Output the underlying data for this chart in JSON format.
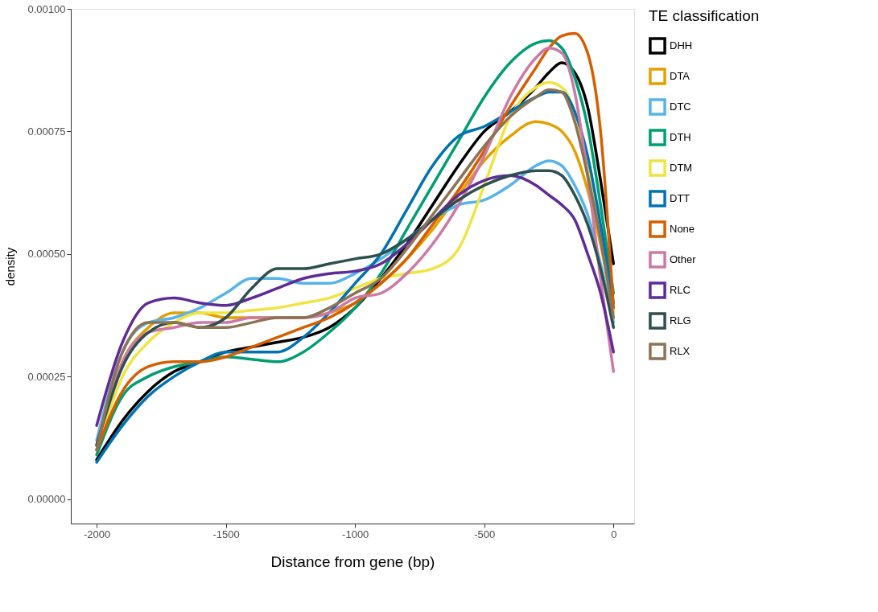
{
  "chart_data": {
    "type": "line",
    "xlabel": "Distance from gene (bp)",
    "ylabel": "density",
    "legend_title": "TE classification",
    "x": [
      -2000,
      -1900,
      -1800,
      -1700,
      -1600,
      -1500,
      -1400,
      -1300,
      -1200,
      -1100,
      -1000,
      -900,
      -800,
      -700,
      -600,
      -500,
      -400,
      -300,
      -250,
      -200,
      -150,
      -100,
      -50,
      0
    ],
    "series": [
      {
        "name": "DHH",
        "color": "#000000",
        "values": [
          8e-05,
          0.00016,
          0.00022,
          0.00026,
          0.00028,
          0.0003,
          0.00031,
          0.00032,
          0.00033,
          0.00035,
          0.00039,
          0.00045,
          0.00052,
          0.0006,
          0.00068,
          0.00075,
          0.00079,
          0.00084,
          0.00087,
          0.00089,
          0.00087,
          0.0008,
          0.00065,
          0.00048
        ]
      },
      {
        "name": "DTA",
        "color": "#e69f00",
        "values": [
          0.00011,
          0.00028,
          0.00035,
          0.00038,
          0.00038,
          0.00037,
          0.00037,
          0.00037,
          0.00037,
          0.00038,
          0.0004,
          0.00044,
          0.00049,
          0.00055,
          0.00062,
          0.00069,
          0.00074,
          0.00077,
          0.000765,
          0.00075,
          0.00071,
          0.00063,
          0.00052,
          0.00038
        ]
      },
      {
        "name": "DTC",
        "color": "#56b4e9",
        "values": [
          0.00012,
          0.0003,
          0.00036,
          0.00037,
          0.00039,
          0.00042,
          0.00045,
          0.00045,
          0.00044,
          0.00044,
          0.00046,
          0.00049,
          0.00053,
          0.00057,
          0.0006,
          0.00061,
          0.00064,
          0.00068,
          0.00069,
          0.00068,
          0.00064,
          0.00058,
          0.00048,
          0.00036
        ]
      },
      {
        "name": "DTH",
        "color": "#009e73",
        "values": [
          9e-05,
          0.00021,
          0.00025,
          0.00027,
          0.00028,
          0.00029,
          0.000285,
          0.00028,
          0.0003,
          0.00034,
          0.00039,
          0.00046,
          0.00055,
          0.00064,
          0.00073,
          0.00082,
          0.00089,
          0.00093,
          0.000935,
          0.00092,
          0.00086,
          0.00076,
          0.0006,
          0.00042
        ]
      },
      {
        "name": "DTM",
        "color": "#f0e442",
        "values": [
          0.0001,
          0.00025,
          0.00032,
          0.00036,
          0.00038,
          0.00038,
          0.000385,
          0.00039,
          0.0004,
          0.00041,
          0.00043,
          0.00045,
          0.00046,
          0.00047,
          0.00051,
          0.00064,
          0.00078,
          0.00084,
          0.00085,
          0.00084,
          0.00079,
          0.00068,
          0.00054,
          0.00038
        ]
      },
      {
        "name": "DTT",
        "color": "#0072b2",
        "values": [
          7.5e-05,
          0.00015,
          0.00021,
          0.00025,
          0.00028,
          0.0003,
          0.0003,
          0.0003,
          0.00033,
          0.00038,
          0.00044,
          0.0005,
          0.00059,
          0.00068,
          0.00074,
          0.00076,
          0.00079,
          0.00082,
          0.00083,
          0.00083,
          0.00079,
          0.0007,
          0.00056,
          0.0004
        ]
      },
      {
        "name": "None",
        "color": "#d55e00",
        "values": [
          0.0001,
          0.00022,
          0.00027,
          0.00028,
          0.00028,
          0.00029,
          0.00031,
          0.00033,
          0.00035,
          0.00037,
          0.0004,
          0.00044,
          0.00049,
          0.00056,
          0.00063,
          0.00071,
          0.0008,
          0.00088,
          0.00092,
          0.000945,
          0.00095,
          0.00091,
          0.00075,
          0.00039
        ]
      },
      {
        "name": "Other",
        "color": "#cc79a7",
        "values": [
          0.00011,
          0.00028,
          0.00034,
          0.00035,
          0.00036,
          0.00036,
          0.00037,
          0.00037,
          0.00037,
          0.00038,
          0.00041,
          0.00042,
          0.00046,
          0.00052,
          0.0006,
          0.0007,
          0.00082,
          0.0009,
          0.00092,
          0.00091,
          0.00083,
          0.00066,
          0.00045,
          0.00026
        ]
      },
      {
        "name": "RLC",
        "color": "#5e2b97",
        "values": [
          0.00015,
          0.00032,
          0.0004,
          0.00041,
          0.0004,
          0.000395,
          0.00041,
          0.00043,
          0.00045,
          0.00046,
          0.000465,
          0.00048,
          0.00052,
          0.00057,
          0.00062,
          0.00065,
          0.00066,
          0.00064,
          0.00062,
          0.0006,
          0.00057,
          0.0005,
          0.00042,
          0.0003
        ]
      },
      {
        "name": "RLG",
        "color": "#2f4f4f",
        "values": [
          0.00011,
          0.00027,
          0.00034,
          0.00036,
          0.00035,
          0.00037,
          0.00043,
          0.00047,
          0.00047,
          0.00048,
          0.00049,
          0.0005,
          0.00053,
          0.00057,
          0.00061,
          0.00064,
          0.00066,
          0.00067,
          0.00067,
          0.00066,
          0.00062,
          0.00056,
          0.00047,
          0.00035
        ]
      },
      {
        "name": "RLX",
        "color": "#8c7355",
        "values": [
          0.0001,
          0.0003,
          0.00036,
          0.00036,
          0.00035,
          0.00035,
          0.00036,
          0.00037,
          0.00037,
          0.00039,
          0.00042,
          0.00045,
          0.00051,
          0.00058,
          0.00065,
          0.00072,
          0.00078,
          0.00082,
          0.000835,
          0.00083,
          0.00077,
          0.00066,
          0.00053,
          0.00037
        ]
      }
    ],
    "xlim": [
      -2100,
      80
    ],
    "ylim": [
      -5e-05,
      0.001
    ],
    "xticks": [
      {
        "value": -2000,
        "label": "-2000"
      },
      {
        "value": -1500,
        "label": "-1500"
      },
      {
        "value": -1000,
        "label": "-1000"
      },
      {
        "value": -500,
        "label": "-500"
      },
      0
    ],
    "yticks": [
      {
        "value": 0,
        "label": "0.00000"
      },
      {
        "value": 0.00025,
        "label": "0.00025"
      },
      {
        "value": 0.0005,
        "label": "0.00050"
      },
      {
        "value": 0.00075,
        "label": "0.00075"
      },
      {
        "value": 0.001,
        "label": "0.00100"
      }
    ],
    "grid": false,
    "legend": "right",
    "line_style": "solid",
    "marker": "none"
  }
}
